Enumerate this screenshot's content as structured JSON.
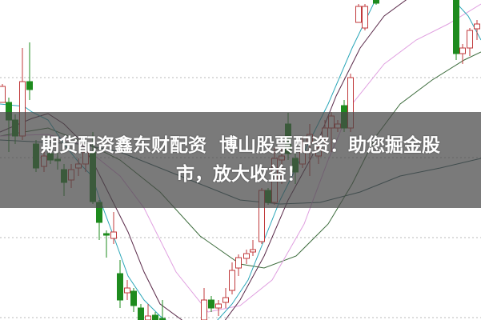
{
  "banner": {
    "line1": "期货配资鑫东财配资  博山股票配资：助您掘金股",
    "line2": "市，放大收益！"
  },
  "colors": {
    "up_candle": "#c0393b",
    "down_candle": "#1e8b1e",
    "ma_cyan": "#2aa6b8",
    "ma_purple": "#5a2a4a",
    "ma_pink": "#e0a0e0",
    "ma_green": "#3b6b3b",
    "ma_teal": "#2f5a5f",
    "banner_text": "#ffffff"
  }
}
